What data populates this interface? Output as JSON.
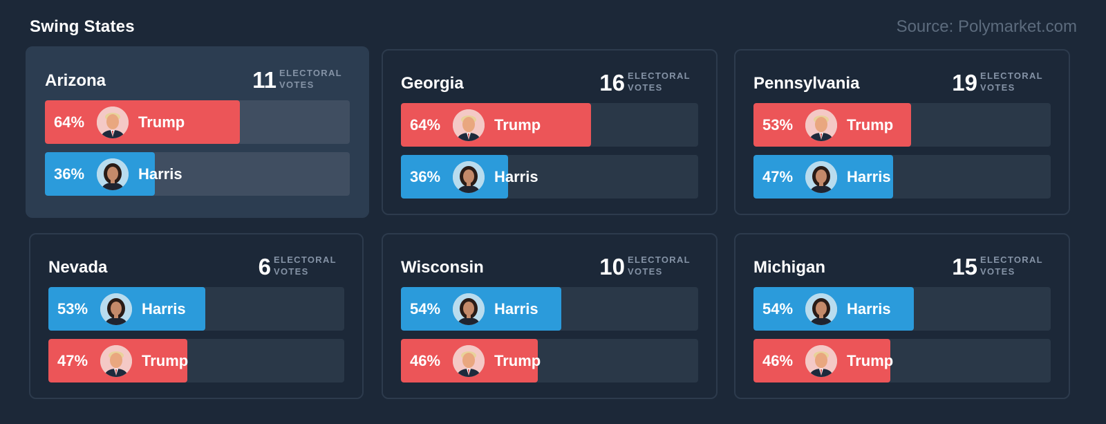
{
  "header": {
    "title": "Swing States",
    "source": "Source: Polymarket.com"
  },
  "votes_label": [
    "ELECTORAL",
    "VOTES"
  ],
  "colors": {
    "trump": "#ec5558",
    "harris": "#2b9bdb",
    "background": "#1c2838",
    "active_card": "#2c3d51"
  },
  "states": [
    {
      "name": "Arizona",
      "votes": "11",
      "active": true,
      "candidates": [
        {
          "name": "Trump",
          "pct_label": "64%",
          "share": 64,
          "party": "trump",
          "icon": "trump-avatar-icon"
        },
        {
          "name": "Harris",
          "pct_label": "36%",
          "share": 36,
          "party": "harris",
          "icon": "harris-avatar-icon"
        }
      ]
    },
    {
      "name": "Georgia",
      "votes": "16",
      "active": false,
      "candidates": [
        {
          "name": "Trump",
          "pct_label": "64%",
          "share": 64,
          "party": "trump",
          "icon": "trump-avatar-icon"
        },
        {
          "name": "Harris",
          "pct_label": "36%",
          "share": 36,
          "party": "harris",
          "icon": "harris-avatar-icon"
        }
      ]
    },
    {
      "name": "Pennsylvania",
      "votes": "19",
      "active": false,
      "candidates": [
        {
          "name": "Trump",
          "pct_label": "53%",
          "share": 53,
          "party": "trump",
          "icon": "trump-avatar-icon"
        },
        {
          "name": "Harris",
          "pct_label": "47%",
          "share": 47,
          "party": "harris",
          "icon": "harris-avatar-icon"
        }
      ]
    },
    {
      "name": "Nevada",
      "votes": "6",
      "active": false,
      "candidates": [
        {
          "name": "Harris",
          "pct_label": "53%",
          "share": 53,
          "party": "harris",
          "icon": "harris-avatar-icon"
        },
        {
          "name": "Trump",
          "pct_label": "47%",
          "share": 47,
          "party": "trump",
          "icon": "trump-avatar-icon"
        }
      ]
    },
    {
      "name": "Wisconsin",
      "votes": "10",
      "active": false,
      "candidates": [
        {
          "name": "Harris",
          "pct_label": "54%",
          "share": 54,
          "party": "harris",
          "icon": "harris-avatar-icon"
        },
        {
          "name": "Trump",
          "pct_label": "46%",
          "share": 46,
          "party": "trump",
          "icon": "trump-avatar-icon"
        }
      ]
    },
    {
      "name": "Michigan",
      "votes": "15",
      "active": false,
      "candidates": [
        {
          "name": "Harris",
          "pct_label": "54%",
          "share": 54,
          "party": "harris",
          "icon": "harris-avatar-icon"
        },
        {
          "name": "Trump",
          "pct_label": "46%",
          "share": 46,
          "party": "trump",
          "icon": "trump-avatar-icon"
        }
      ]
    }
  ]
}
